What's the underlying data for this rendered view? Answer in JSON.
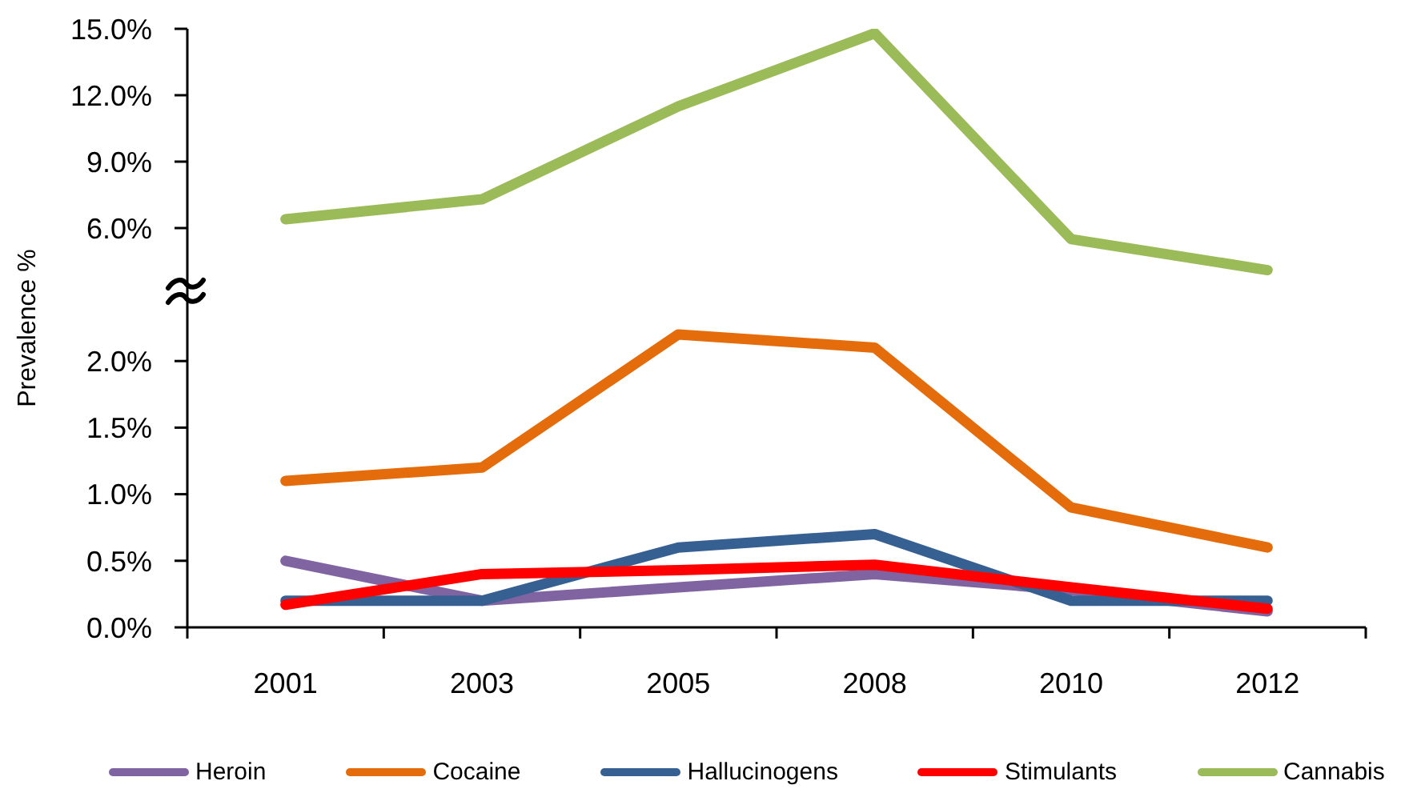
{
  "chart_data": [
    {
      "type": "line",
      "categories": [
        "2001",
        "2003",
        "2005",
        "2008",
        "2010",
        "2012"
      ],
      "ylim": [
        3,
        15
      ],
      "yticks": [
        {
          "value": 6,
          "label": "6.0%"
        },
        {
          "value": 9,
          "label": "9.0%"
        },
        {
          "value": 12,
          "label": "12.0%"
        },
        {
          "value": 15,
          "label": "15.0%"
        }
      ],
      "tick_labels": "y",
      "legend": "bottom",
      "series": [
        {
          "name": "Cannabis",
          "color": "#9bbb59",
          "values": [
            6.4,
            7.3,
            11.5,
            14.8,
            5.5,
            4.1
          ]
        }
      ]
    },
    {
      "type": "line",
      "categories": [
        "2001",
        "2003",
        "2005",
        "2008",
        "2010",
        "2012"
      ],
      "ylabel": "Prevalence %",
      "ylim": [
        0,
        2.5
      ],
      "yticks": [
        {
          "value": 0,
          "label": "0.0%"
        },
        {
          "value": 0.5,
          "label": "0.5%"
        },
        {
          "value": 1,
          "label": "1.0%"
        },
        {
          "value": 1.5,
          "label": "1.5%"
        },
        {
          "value": 2,
          "label": "2.0%"
        }
      ],
      "legend": "bottom",
      "series": [
        {
          "name": "Heroin",
          "color": "#8064a2",
          "values": [
            0.5,
            0.2,
            0.3,
            0.4,
            0.28,
            0.12
          ]
        },
        {
          "name": "Cocaine",
          "color": "#e46c0a",
          "values": [
            1.1,
            1.2,
            2.2,
            2.1,
            0.9,
            0.6
          ]
        },
        {
          "name": "Hallucinogens",
          "color": "#376092",
          "values": [
            0.2,
            0.2,
            0.6,
            0.7,
            0.2,
            0.2
          ]
        },
        {
          "name": "Stimulants",
          "color": "#ff0000",
          "values": [
            0.17,
            0.4,
            0.43,
            0.47,
            0.3,
            0.14
          ]
        }
      ]
    }
  ]
}
